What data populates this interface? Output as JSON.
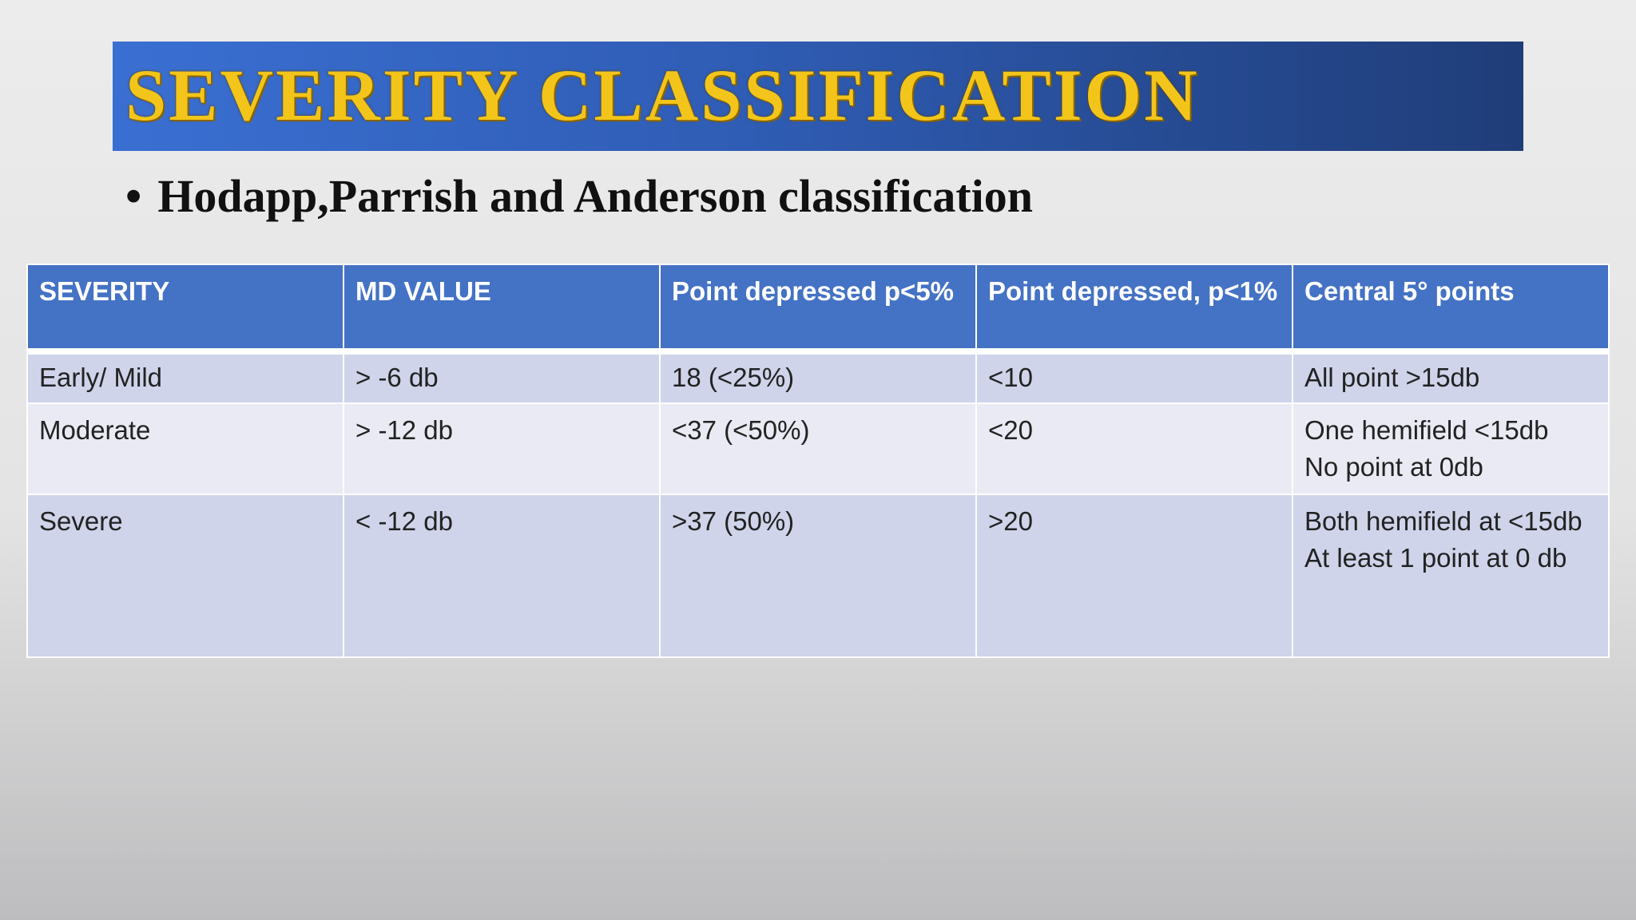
{
  "header": {
    "title": "SEVERITY CLASSIFICATION",
    "bullet": "Hodapp,Parrish and Anderson classification"
  },
  "table": {
    "columns": [
      "SEVERITY",
      "MD VALUE",
      "Point depressed p<5%",
      "Point depressed, p<1%",
      "Central 5° points"
    ],
    "rows": [
      [
        "Early/ Mild",
        "> -6 db",
        "18 (<25%)",
        "<10",
        [
          "All point >15db"
        ]
      ],
      [
        "Moderate",
        "> -12 db",
        "<37 (<50%)",
        "<20",
        [
          "One hemifield <15db",
          "No point at 0db"
        ]
      ],
      [
        "Severe",
        "< -12 db",
        ">37 (50%)",
        ">20",
        [
          "Both hemifield at <15db",
          "At least 1 point at 0 db"
        ]
      ]
    ]
  }
}
